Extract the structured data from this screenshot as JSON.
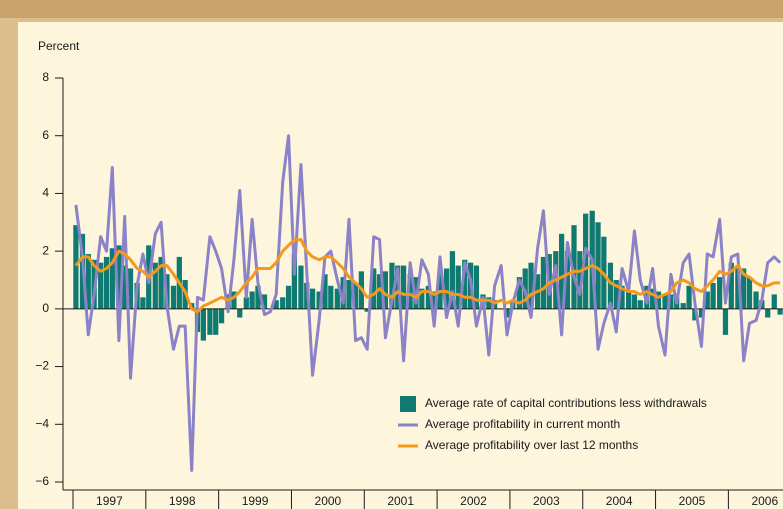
{
  "chart_data": {
    "type": "bar",
    "y_label": "Percent",
    "xlim": [
      1997,
      2006.75
    ],
    "xticks": [
      1997,
      1998,
      1999,
      2000,
      2001,
      2002,
      2003,
      2004,
      2005,
      2006
    ],
    "ylim": [
      -6,
      8
    ],
    "yticks": [
      {
        "value": -6,
        "label": "−6"
      },
      {
        "value": -4,
        "label": "−4"
      },
      {
        "value": -2,
        "label": "−2"
      },
      0,
      2,
      4,
      6,
      8
    ],
    "legend": "lower right",
    "x": [
      1997.04,
      1997.13,
      1997.21,
      1997.29,
      1997.38,
      1997.46,
      1997.54,
      1997.63,
      1997.71,
      1997.79,
      1997.88,
      1997.96,
      1998.04,
      1998.13,
      1998.21,
      1998.29,
      1998.38,
      1998.46,
      1998.54,
      1998.63,
      1998.71,
      1998.79,
      1998.88,
      1998.96,
      1999.04,
      1999.13,
      1999.21,
      1999.29,
      1999.38,
      1999.46,
      1999.54,
      1999.63,
      1999.71,
      1999.79,
      1999.88,
      1999.96,
      2000.04,
      2000.13,
      2000.21,
      2000.29,
      2000.38,
      2000.46,
      2000.54,
      2000.63,
      2000.71,
      2000.79,
      2000.88,
      2000.96,
      2001.04,
      2001.13,
      2001.21,
      2001.29,
      2001.38,
      2001.46,
      2001.54,
      2001.63,
      2001.71,
      2001.79,
      2001.88,
      2001.96,
      2002.04,
      2002.13,
      2002.21,
      2002.29,
      2002.38,
      2002.46,
      2002.54,
      2002.63,
      2002.71,
      2002.79,
      2002.88,
      2002.96,
      2003.04,
      2003.13,
      2003.21,
      2003.29,
      2003.38,
      2003.46,
      2003.54,
      2003.63,
      2003.71,
      2003.79,
      2003.88,
      2003.96,
      2004.04,
      2004.13,
      2004.21,
      2004.29,
      2004.38,
      2004.46,
      2004.54,
      2004.63,
      2004.71,
      2004.79,
      2004.88,
      2004.96,
      2005.04,
      2005.13,
      2005.21,
      2005.29,
      2005.38,
      2005.46,
      2005.54,
      2005.63,
      2005.71,
      2005.79,
      2005.88,
      2005.96,
      2006.04,
      2006.13,
      2006.21,
      2006.29,
      2006.38,
      2006.46,
      2006.54,
      2006.63,
      2006.71
    ],
    "series": [
      {
        "name": "Average rate of capital contributions less withdrawals",
        "type": "bar",
        "color": "#0f7a72",
        "values": [
          2.9,
          2.6,
          1.9,
          1.7,
          1.6,
          1.8,
          2.1,
          2.2,
          1.5,
          1.4,
          0.9,
          0.4,
          2.2,
          1.6,
          1.8,
          1.2,
          0.8,
          1.8,
          1.0,
          0.2,
          -0.8,
          -1.1,
          -0.9,
          -0.9,
          -0.5,
          0.5,
          0.6,
          -0.3,
          0.4,
          0.6,
          0.8,
          0.5,
          0.0,
          0.3,
          0.4,
          0.8,
          1.9,
          1.5,
          0.9,
          0.7,
          0.6,
          1.2,
          0.8,
          0.7,
          1.1,
          1.0,
          0.9,
          1.3,
          -0.1,
          1.4,
          1.2,
          1.3,
          1.6,
          1.5,
          1.5,
          1.2,
          1.1,
          0.7,
          0.8,
          0.6,
          1.2,
          1.4,
          2.0,
          1.5,
          1.7,
          1.6,
          1.5,
          0.5,
          0.4,
          0.3,
          0.0,
          -0.3,
          0.3,
          1.1,
          1.4,
          1.6,
          1.2,
          1.8,
          1.9,
          2.0,
          2.6,
          2.0,
          2.9,
          2.0,
          3.3,
          3.4,
          3.0,
          2.5,
          1.6,
          1.0,
          0.8,
          0.6,
          0.5,
          0.3,
          0.8,
          0.7,
          0.6,
          0.5,
          0.5,
          0.4,
          0.2,
          0.8,
          -0.4,
          -0.3,
          0.6,
          0.9,
          1.1,
          -0.9,
          1.6,
          1.5,
          1.4,
          1.1,
          0.6,
          0.3,
          -0.3,
          0.5,
          -0.2
        ]
      },
      {
        "name": "Average profitability in current month",
        "type": "line",
        "color": "#8b82c8",
        "values": [
          3.6,
          1.8,
          -0.9,
          0.5,
          2.5,
          2.0,
          4.9,
          -1.1,
          3.2,
          -2.4,
          0.8,
          1.9,
          0.9,
          2.6,
          3.0,
          0.1,
          -1.4,
          -0.6,
          -0.6,
          -5.6,
          0.4,
          0.3,
          2.5,
          2.0,
          1.4,
          -0.1,
          1.7,
          4.1,
          0.4,
          3.1,
          0.9,
          -0.2,
          -0.1,
          0.5,
          4.4,
          6.0,
          1.2,
          5.0,
          1.3,
          -2.3,
          -0.4,
          1.8,
          2.0,
          1.0,
          0.2,
          3.1,
          -1.1,
          -1.0,
          -1.4,
          2.5,
          2.4,
          -1.0,
          0.3,
          1.4,
          -1.8,
          1.6,
          0.2,
          1.7,
          1.2,
          -0.6,
          1.8,
          -0.3,
          0.6,
          -0.6,
          1.6,
          1.0,
          -0.6,
          0.4,
          -1.6,
          0.8,
          1.5,
          -0.9,
          0.2,
          1.0,
          0.6,
          -0.3,
          2.1,
          3.4,
          0.5,
          1.5,
          -0.9,
          2.3,
          1.1,
          0.5,
          2.1,
          1.7,
          -1.4,
          -0.5,
          0.2,
          -0.8,
          1.4,
          0.6,
          2.7,
          1.0,
          0.2,
          1.4,
          -0.6,
          -1.6,
          1.2,
          0.2,
          1.6,
          1.9,
          0.2,
          -1.3,
          1.9,
          1.8,
          3.1,
          0.2,
          1.8,
          1.9,
          -1.8,
          -0.5,
          -0.4,
          0.3,
          1.6,
          1.8,
          1.6
        ]
      },
      {
        "name": "Average profitability over last 12 months",
        "type": "line",
        "color": "#f39a1e",
        "values": [
          1.5,
          1.8,
          1.8,
          1.5,
          1.3,
          1.4,
          1.6,
          2.0,
          1.9,
          1.7,
          1.4,
          1.3,
          1.1,
          1.3,
          1.5,
          1.5,
          1.2,
          0.9,
          0.6,
          0.0,
          -0.1,
          0.1,
          0.2,
          0.3,
          0.4,
          0.3,
          0.4,
          0.6,
          0.9,
          1.1,
          1.4,
          1.4,
          1.4,
          1.6,
          2.0,
          2.2,
          2.4,
          2.4,
          2.0,
          1.8,
          1.7,
          1.8,
          1.8,
          1.6,
          1.4,
          1.1,
          0.9,
          0.7,
          0.4,
          0.5,
          0.7,
          0.5,
          0.4,
          0.6,
          0.5,
          0.5,
          0.4,
          0.6,
          0.6,
          0.5,
          0.6,
          0.6,
          0.5,
          0.5,
          0.4,
          0.4,
          0.3,
          0.3,
          0.3,
          0.2,
          0.3,
          0.2,
          0.3,
          0.2,
          0.3,
          0.5,
          0.6,
          0.7,
          0.9,
          1.0,
          1.1,
          1.2,
          1.3,
          1.3,
          1.4,
          1.5,
          1.4,
          1.2,
          0.9,
          0.8,
          0.7,
          0.6,
          0.6,
          0.5,
          0.6,
          0.5,
          0.4,
          0.5,
          0.6,
          0.9,
          1.0,
          0.9,
          0.7,
          0.6,
          0.8,
          1.0,
          1.3,
          1.2,
          1.3,
          1.5,
          1.2,
          1.1,
          0.9,
          0.8,
          0.8,
          0.9,
          0.9
        ]
      }
    ]
  }
}
